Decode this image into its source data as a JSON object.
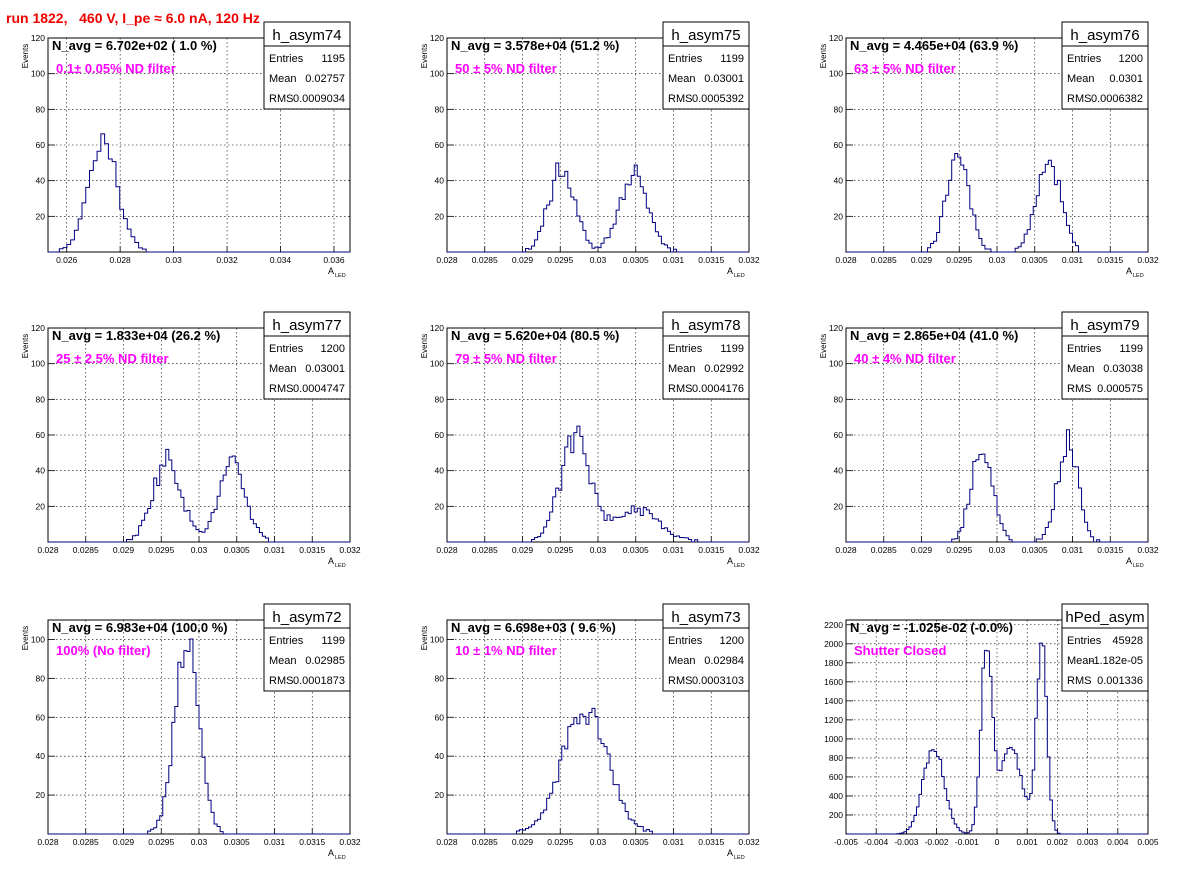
{
  "header": {
    "run_title": "run 1822,   460 V, I_pe ≈ 6.0 nA, 120 Hz"
  },
  "colors": {
    "hist_line": "#000080",
    "annotation": "#ff00ff",
    "title": "#ee0000",
    "frame": "#000000"
  },
  "chart_data": [
    {
      "type": "histogram",
      "name": "h_asym74",
      "navg": "N_avg = 6.702e+02 ( 1.0 %)",
      "filter": "0.1± 0.05% ND filter",
      "stats": [
        [
          "Entries",
          "1195"
        ],
        [
          "Mean",
          "0.02757"
        ],
        [
          "RMS",
          "0.0009034"
        ]
      ],
      "xlabel": "A",
      "xlabel_sub": "LED",
      "ylabel": "Events",
      "xlim": [
        0.0253,
        0.0366
      ],
      "ylim": [
        0,
        120
      ],
      "xticks": [
        {
          "v": 0.026,
          "l": "0.026"
        },
        {
          "v": 0.028,
          "l": "0.028"
        },
        {
          "v": 0.03,
          "l": "0.03"
        },
        {
          "v": 0.032,
          "l": "0.032"
        },
        {
          "v": 0.034,
          "l": "0.034"
        },
        {
          "v": 0.036,
          "l": "0.036"
        }
      ],
      "yticks": [
        {
          "v": 20,
          "l": "20"
        },
        {
          "v": 40,
          "l": "40"
        },
        {
          "v": 60,
          "l": "60"
        },
        {
          "v": 80,
          "l": "80"
        },
        {
          "v": 100,
          "l": "100"
        },
        {
          "v": 120,
          "l": "120"
        }
      ],
      "peaks": [
        {
          "mu": 0.02735,
          "sigma": 0.00055,
          "amp": 62
        }
      ],
      "bins": 80,
      "noise": 0.1,
      "seed": 74
    },
    {
      "type": "histogram",
      "name": "h_asym75",
      "navg": "N_avg = 3.578e+04 (51.2 %)",
      "filter": "50 ± 5% ND filter",
      "stats": [
        [
          "Entries",
          "1199"
        ],
        [
          "Mean",
          "0.03001"
        ],
        [
          "RMS",
          "0.0005392"
        ]
      ],
      "xlabel": "A",
      "xlabel_sub": "LED",
      "ylabel": "Events",
      "xlim": [
        0.028,
        0.032
      ],
      "ylim": [
        0,
        120
      ],
      "xticks": [
        {
          "v": 0.028,
          "l": "0.028"
        },
        {
          "v": 0.0285,
          "l": "0.0285"
        },
        {
          "v": 0.029,
          "l": "0.029"
        },
        {
          "v": 0.0295,
          "l": "0.0295"
        },
        {
          "v": 0.03,
          "l": "0.03"
        },
        {
          "v": 0.0305,
          "l": "0.0305"
        },
        {
          "v": 0.031,
          "l": "0.031"
        },
        {
          "v": 0.0315,
          "l": "0.0315"
        },
        {
          "v": 0.032,
          "l": "0.032"
        }
      ],
      "yticks": [
        {
          "v": 20,
          "l": "20"
        },
        {
          "v": 40,
          "l": "40"
        },
        {
          "v": 60,
          "l": "60"
        },
        {
          "v": 80,
          "l": "80"
        },
        {
          "v": 100,
          "l": "100"
        },
        {
          "v": 120,
          "l": "120"
        }
      ],
      "peaks": [
        {
          "mu": 0.02952,
          "sigma": 0.00017,
          "amp": 48
        },
        {
          "mu": 0.03048,
          "sigma": 0.00019,
          "amp": 45
        }
      ],
      "bins": 100,
      "noise": 0.15,
      "seed": 75
    },
    {
      "type": "histogram",
      "name": "h_asym76",
      "navg": "N_avg = 4.465e+04 (63.9 %)",
      "filter": "63 ± 5% ND filter",
      "stats": [
        [
          "Entries",
          "1200"
        ],
        [
          "Mean",
          "0.0301"
        ],
        [
          "RMS",
          "0.0006382"
        ]
      ],
      "xlabel": "A",
      "xlabel_sub": "LED",
      "ylabel": "Events",
      "xlim": [
        0.028,
        0.032
      ],
      "ylim": [
        0,
        120
      ],
      "xticks": [
        {
          "v": 0.028,
          "l": "0.028"
        },
        {
          "v": 0.0285,
          "l": "0.0285"
        },
        {
          "v": 0.029,
          "l": "0.029"
        },
        {
          "v": 0.0295,
          "l": "0.0295"
        },
        {
          "v": 0.03,
          "l": "0.03"
        },
        {
          "v": 0.0305,
          "l": "0.0305"
        },
        {
          "v": 0.031,
          "l": "0.031"
        },
        {
          "v": 0.0315,
          "l": "0.0315"
        },
        {
          "v": 0.032,
          "l": "0.032"
        }
      ],
      "yticks": [
        {
          "v": 20,
          "l": "20"
        },
        {
          "v": 40,
          "l": "40"
        },
        {
          "v": 60,
          "l": "60"
        },
        {
          "v": 80,
          "l": "80"
        },
        {
          "v": 100,
          "l": "100"
        },
        {
          "v": 120,
          "l": "120"
        }
      ],
      "peaks": [
        {
          "mu": 0.02948,
          "sigma": 0.00015,
          "amp": 54
        },
        {
          "mu": 0.03068,
          "sigma": 0.00016,
          "amp": 52
        }
      ],
      "bins": 100,
      "noise": 0.15,
      "seed": 76
    },
    {
      "type": "histogram",
      "name": "h_asym77",
      "navg": "N_avg = 1.833e+04 (26.2 %)",
      "filter": "25 ± 2.5% ND filter",
      "stats": [
        [
          "Entries",
          "1200"
        ],
        [
          "Mean",
          "0.03001"
        ],
        [
          "RMS",
          "0.0004747"
        ]
      ],
      "xlabel": "A",
      "xlabel_sub": "LED",
      "ylabel": "Events",
      "xlim": [
        0.028,
        0.032
      ],
      "ylim": [
        0,
        120
      ],
      "xticks": [
        {
          "v": 0.028,
          "l": "0.028"
        },
        {
          "v": 0.0285,
          "l": "0.0285"
        },
        {
          "v": 0.029,
          "l": "0.029"
        },
        {
          "v": 0.0295,
          "l": "0.0295"
        },
        {
          "v": 0.03,
          "l": "0.03"
        },
        {
          "v": 0.0305,
          "l": "0.0305"
        },
        {
          "v": 0.031,
          "l": "0.031"
        },
        {
          "v": 0.0315,
          "l": "0.0315"
        },
        {
          "v": 0.032,
          "l": "0.032"
        }
      ],
      "yticks": [
        {
          "v": 20,
          "l": "20"
        },
        {
          "v": 40,
          "l": "40"
        },
        {
          "v": 60,
          "l": "60"
        },
        {
          "v": 80,
          "l": "80"
        },
        {
          "v": 100,
          "l": "100"
        },
        {
          "v": 120,
          "l": "120"
        }
      ],
      "peaks": [
        {
          "mu": 0.02958,
          "sigma": 0.00019,
          "amp": 46
        },
        {
          "mu": 0.03044,
          "sigma": 0.00018,
          "amp": 42
        }
      ],
      "bins": 100,
      "noise": 0.15,
      "seed": 77
    },
    {
      "type": "histogram",
      "name": "h_asym78",
      "navg": "N_avg = 5.620e+04 (80.5 %)",
      "filter": "79 ± 5% ND filter",
      "stats": [
        [
          "Entries",
          "1199"
        ],
        [
          "Mean",
          "0.02992"
        ],
        [
          "RMS",
          "0.0004176"
        ]
      ],
      "xlabel": "A",
      "xlabel_sub": "LED",
      "ylabel": "Events",
      "xlim": [
        0.028,
        0.032
      ],
      "ylim": [
        0,
        120
      ],
      "xticks": [
        {
          "v": 0.028,
          "l": "0.028"
        },
        {
          "v": 0.0285,
          "l": "0.0285"
        },
        {
          "v": 0.029,
          "l": "0.029"
        },
        {
          "v": 0.0295,
          "l": "0.0295"
        },
        {
          "v": 0.03,
          "l": "0.03"
        },
        {
          "v": 0.0305,
          "l": "0.0305"
        },
        {
          "v": 0.031,
          "l": "0.031"
        },
        {
          "v": 0.0315,
          "l": "0.0315"
        },
        {
          "v": 0.032,
          "l": "0.032"
        }
      ],
      "yticks": [
        {
          "v": 20,
          "l": "20"
        },
        {
          "v": 40,
          "l": "40"
        },
        {
          "v": 60,
          "l": "60"
        },
        {
          "v": 80,
          "l": "80"
        },
        {
          "v": 100,
          "l": "100"
        },
        {
          "v": 120,
          "l": "120"
        }
      ],
      "peaks": [
        {
          "mu": 0.0297,
          "sigma": 0.0002,
          "amp": 57
        },
        {
          "mu": 0.0305,
          "sigma": 0.0003,
          "amp": 18
        }
      ],
      "bins": 100,
      "noise": 0.15,
      "seed": 78
    },
    {
      "type": "histogram",
      "name": "h_asym79",
      "navg": "N_avg = 2.865e+04 (41.0 %)",
      "filter": "40 ± 4% ND filter",
      "stats": [
        [
          "Entries",
          "1199"
        ],
        [
          "Mean",
          "0.03038"
        ],
        [
          "RMS",
          "0.000575"
        ]
      ],
      "xlabel": "A",
      "xlabel_sub": "LED",
      "ylabel": "Events",
      "xlim": [
        0.028,
        0.032
      ],
      "ylim": [
        0,
        120
      ],
      "xticks": [
        {
          "v": 0.028,
          "l": "0.028"
        },
        {
          "v": 0.0285,
          "l": "0.0285"
        },
        {
          "v": 0.029,
          "l": "0.029"
        },
        {
          "v": 0.0295,
          "l": "0.0295"
        },
        {
          "v": 0.03,
          "l": "0.03"
        },
        {
          "v": 0.0305,
          "l": "0.0305"
        },
        {
          "v": 0.031,
          "l": "0.031"
        },
        {
          "v": 0.0315,
          "l": "0.0315"
        },
        {
          "v": 0.032,
          "l": "0.032"
        }
      ],
      "yticks": [
        {
          "v": 20,
          "l": "20"
        },
        {
          "v": 40,
          "l": "40"
        },
        {
          "v": 60,
          "l": "60"
        },
        {
          "v": 80,
          "l": "80"
        },
        {
          "v": 100,
          "l": "100"
        },
        {
          "v": 120,
          "l": "120"
        }
      ],
      "peaks": [
        {
          "mu": 0.0298,
          "sigma": 0.00014,
          "amp": 54
        },
        {
          "mu": 0.03094,
          "sigma": 0.00014,
          "amp": 55
        }
      ],
      "bins": 100,
      "noise": 0.15,
      "seed": 79
    },
    {
      "type": "histogram",
      "name": "h_asym72",
      "navg": "N_avg = 6.983e+04 (100.0 %)",
      "filter": "100% (No filter)",
      "stats": [
        [
          "Entries",
          "1199"
        ],
        [
          "Mean",
          "0.02985"
        ],
        [
          "RMS",
          "0.0001873"
        ]
      ],
      "xlabel": "A",
      "xlabel_sub": "LED",
      "ylabel": "Events",
      "xlim": [
        0.028,
        0.032
      ],
      "ylim": [
        0,
        110
      ],
      "xticks": [
        {
          "v": 0.028,
          "l": "0.028"
        },
        {
          "v": 0.0285,
          "l": "0.0285"
        },
        {
          "v": 0.029,
          "l": "0.029"
        },
        {
          "v": 0.0295,
          "l": "0.0295"
        },
        {
          "v": 0.03,
          "l": "0.03"
        },
        {
          "v": 0.0305,
          "l": "0.0305"
        },
        {
          "v": 0.031,
          "l": "0.031"
        },
        {
          "v": 0.0315,
          "l": "0.0315"
        },
        {
          "v": 0.032,
          "l": "0.032"
        }
      ],
      "yticks": [
        {
          "v": 20,
          "l": "20"
        },
        {
          "v": 40,
          "l": "40"
        },
        {
          "v": 60,
          "l": "60"
        },
        {
          "v": 80,
          "l": "80"
        },
        {
          "v": 100,
          "l": "100"
        }
      ],
      "peaks": [
        {
          "mu": 0.02984,
          "sigma": 0.00016,
          "amp": 100
        }
      ],
      "bins": 100,
      "noise": 0.1,
      "seed": 72
    },
    {
      "type": "histogram",
      "name": "h_asym73",
      "navg": "N_avg = 6.698e+03 ( 9.6 %)",
      "filter": "10 ± 1% ND filter",
      "stats": [
        [
          "Entries",
          "1200"
        ],
        [
          "Mean",
          "0.02984"
        ],
        [
          "RMS",
          "0.0003103"
        ]
      ],
      "xlabel": "A",
      "xlabel_sub": "LED",
      "ylabel": "Events",
      "xlim": [
        0.028,
        0.032
      ],
      "ylim": [
        0,
        110
      ],
      "xticks": [
        {
          "v": 0.028,
          "l": "0.028"
        },
        {
          "v": 0.0285,
          "l": "0.0285"
        },
        {
          "v": 0.029,
          "l": "0.029"
        },
        {
          "v": 0.0295,
          "l": "0.0295"
        },
        {
          "v": 0.03,
          "l": "0.03"
        },
        {
          "v": 0.0305,
          "l": "0.0305"
        },
        {
          "v": 0.031,
          "l": "0.031"
        },
        {
          "v": 0.0315,
          "l": "0.0315"
        },
        {
          "v": 0.032,
          "l": "0.032"
        }
      ],
      "yticks": [
        {
          "v": 20,
          "l": "20"
        },
        {
          "v": 40,
          "l": "40"
        },
        {
          "v": 60,
          "l": "60"
        },
        {
          "v": 80,
          "l": "80"
        },
        {
          "v": 100,
          "l": "100"
        }
      ],
      "peaks": [
        {
          "mu": 0.02983,
          "sigma": 0.0003,
          "amp": 64
        }
      ],
      "bins": 100,
      "noise": 0.12,
      "seed": 73
    },
    {
      "type": "histogram",
      "name": "hPed_asym",
      "navg": "N_avg = -1.025e-02 (-0.0%)",
      "filter": "Shutter Closed",
      "stats": [
        [
          "Entries",
          "45928"
        ],
        [
          "Mean",
          "-1.182e-05"
        ],
        [
          "RMS",
          "0.001336"
        ]
      ],
      "xlabel": "",
      "xlabel_sub": "",
      "ylabel": "",
      "xlim": [
        -0.005,
        0.005
      ],
      "ylim": [
        0,
        2250
      ],
      "xticks": [
        {
          "v": -0.005,
          "l": "-0.005"
        },
        {
          "v": -0.004,
          "l": "-0.004"
        },
        {
          "v": -0.003,
          "l": "-0.003"
        },
        {
          "v": -0.002,
          "l": "-0.002"
        },
        {
          "v": -0.001,
          "l": "-0.001"
        },
        {
          "v": 0,
          "l": "0"
        },
        {
          "v": 0.001,
          "l": "0.001"
        },
        {
          "v": 0.002,
          "l": "0.002"
        },
        {
          "v": 0.003,
          "l": "0.003"
        },
        {
          "v": 0.004,
          "l": "0.004"
        },
        {
          "v": 0.005,
          "l": "0.005"
        }
      ],
      "yticks": [
        {
          "v": 200,
          "l": "200"
        },
        {
          "v": 400,
          "l": "400"
        },
        {
          "v": 600,
          "l": "600"
        },
        {
          "v": 800,
          "l": "800"
        },
        {
          "v": 1000,
          "l": "1000"
        },
        {
          "v": 1200,
          "l": "1200"
        },
        {
          "v": 1400,
          "l": "1400"
        },
        {
          "v": 1600,
          "l": "1600"
        },
        {
          "v": 1800,
          "l": "1800"
        },
        {
          "v": 2000,
          "l": "2000"
        },
        {
          "v": 2200,
          "l": "2200"
        }
      ],
      "peaks": [
        {
          "mu": -0.0021,
          "sigma": 0.00035,
          "amp": 920
        },
        {
          "mu": -0.00035,
          "sigma": 0.00018,
          "amp": 1900
        },
        {
          "mu": 0.00045,
          "sigma": 0.0004,
          "amp": 880
        },
        {
          "mu": 0.00148,
          "sigma": 0.00017,
          "amp": 2000
        }
      ],
      "bins": 120,
      "noise": 0.06,
      "seed": 70
    }
  ]
}
